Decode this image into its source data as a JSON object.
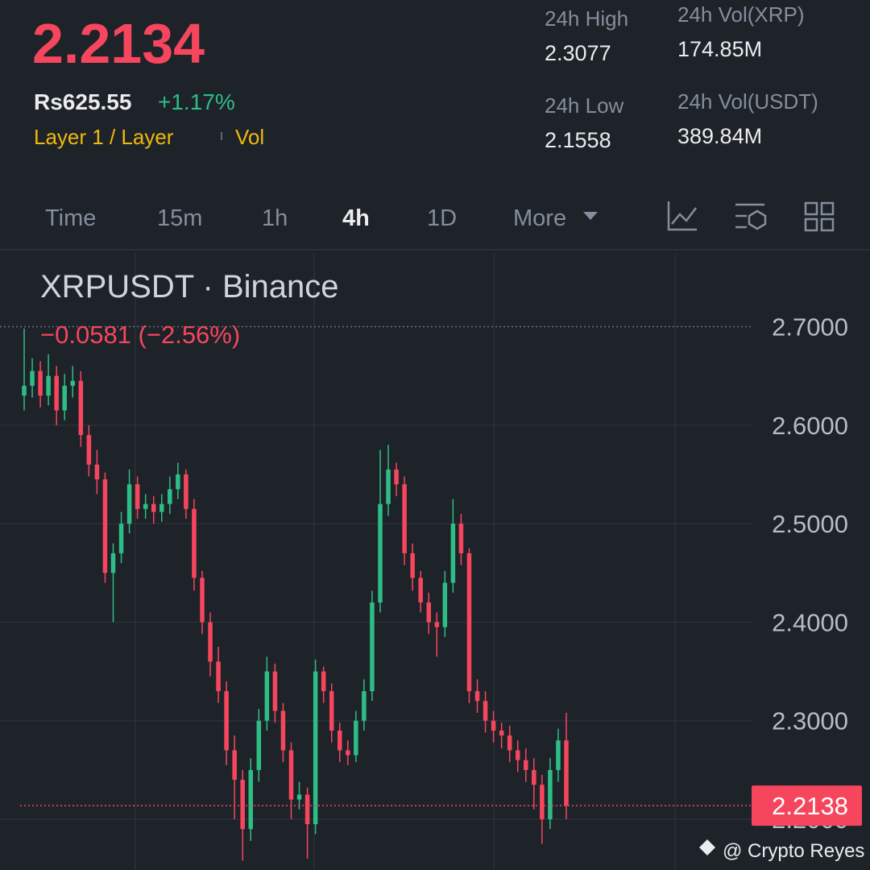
{
  "header": {
    "price": "2.2134",
    "fiat_price": "Rs625.55",
    "change": "+1.17%",
    "tag": "Layer 1 / Layer",
    "tag2": "Vol",
    "stats": [
      {
        "label": "24h High",
        "value": "2.3077"
      },
      {
        "label": "24h Vol(XRP)",
        "value": "174.85M"
      },
      {
        "label": "24h Low",
        "value": "2.1558"
      },
      {
        "label": "24h Vol(USDT)",
        "value": "389.84M"
      }
    ]
  },
  "tabs": [
    "Time",
    "15m",
    "1h",
    "4h",
    "1D",
    "More"
  ],
  "active_tab": "4h",
  "watermark": "@ Crypto Reyes",
  "chart_data": {
    "type": "candlestick",
    "title": "XRPUSDT · Binance",
    "subtitle": "−0.0581 (−2.56%)",
    "up_color": "#2ebd85",
    "down_color": "#f6465d",
    "ylim": [
      2.1485,
      2.774
    ],
    "yticks": [
      {
        "value": 2.7,
        "label": "2.7000"
      },
      {
        "value": 2.6,
        "label": "2.6000"
      },
      {
        "value": 2.5,
        "label": "2.5000"
      },
      {
        "value": 2.4,
        "label": "2.4000"
      },
      {
        "value": 2.3,
        "label": "2.3000"
      },
      {
        "value": 2.2,
        "label": "2.2000"
      }
    ],
    "grid": true,
    "last_price": 2.2138,
    "open": [
      2.63,
      2.64,
      2.655,
      2.63,
      2.65,
      2.615,
      2.64,
      2.645,
      2.59,
      2.56,
      2.545,
      2.45,
      2.47,
      2.5,
      2.54,
      2.515,
      2.52,
      2.512,
      2.52,
      2.535,
      2.55,
      2.515,
      2.445,
      2.4,
      2.36,
      2.33,
      2.27,
      2.24,
      2.19,
      2.25,
      2.3,
      2.35,
      2.31,
      2.27,
      2.22,
      2.225,
      2.195,
      2.35,
      2.33,
      2.29,
      2.27,
      2.265,
      2.3,
      2.33,
      2.42,
      2.52,
      2.555,
      2.54,
      2.47,
      2.445,
      2.42,
      2.4,
      2.395,
      2.44,
      2.5,
      2.47,
      2.33,
      2.32,
      2.3,
      2.29,
      2.285,
      2.27,
      2.26,
      2.25,
      2.235,
      2.2,
      2.25,
      2.28
    ],
    "high": [
      2.698,
      2.668,
      2.665,
      2.672,
      2.66,
      2.652,
      2.66,
      2.655,
      2.6,
      2.575,
      2.552,
      2.48,
      2.512,
      2.555,
      2.548,
      2.53,
      2.528,
      2.53,
      2.548,
      2.562,
      2.555,
      2.525,
      2.452,
      2.41,
      2.375,
      2.34,
      2.285,
      2.25,
      2.262,
      2.312,
      2.365,
      2.358,
      2.318,
      2.278,
      2.238,
      2.232,
      2.362,
      2.355,
      2.338,
      2.298,
      2.28,
      2.31,
      2.342,
      2.432,
      2.575,
      2.58,
      2.562,
      2.548,
      2.48,
      2.452,
      2.43,
      2.41,
      2.452,
      2.525,
      2.51,
      2.475,
      2.342,
      2.33,
      2.31,
      2.298,
      2.295,
      2.28,
      2.272,
      2.262,
      2.245,
      2.262,
      2.292,
      2.308
    ],
    "low": [
      2.615,
      2.628,
      2.618,
      2.62,
      2.6,
      2.605,
      2.628,
      2.578,
      2.548,
      2.53,
      2.44,
      2.4,
      2.46,
      2.49,
      2.505,
      2.505,
      2.5,
      2.502,
      2.51,
      2.525,
      2.505,
      2.432,
      2.388,
      2.345,
      2.318,
      2.255,
      2.2,
      2.158,
      2.178,
      2.238,
      2.29,
      2.298,
      2.258,
      2.2,
      2.21,
      2.16,
      2.185,
      2.318,
      2.278,
      2.258,
      2.255,
      2.258,
      2.29,
      2.32,
      2.41,
      2.508,
      2.528,
      2.458,
      2.432,
      2.41,
      2.388,
      2.365,
      2.385,
      2.43,
      2.458,
      2.318,
      2.308,
      2.288,
      2.278,
      2.272,
      2.258,
      2.248,
      2.238,
      2.21,
      2.175,
      2.19,
      2.238,
      2.2
    ],
    "close": [
      2.64,
      2.655,
      2.63,
      2.65,
      2.615,
      2.64,
      2.645,
      2.59,
      2.56,
      2.545,
      2.45,
      2.47,
      2.5,
      2.54,
      2.515,
      2.52,
      2.512,
      2.52,
      2.535,
      2.55,
      2.515,
      2.445,
      2.4,
      2.36,
      2.33,
      2.27,
      2.24,
      2.19,
      2.25,
      2.3,
      2.35,
      2.31,
      2.27,
      2.22,
      2.225,
      2.195,
      2.35,
      2.33,
      2.29,
      2.27,
      2.265,
      2.3,
      2.33,
      2.42,
      2.52,
      2.555,
      2.54,
      2.47,
      2.445,
      2.42,
      2.4,
      2.395,
      2.44,
      2.5,
      2.47,
      2.33,
      2.32,
      2.3,
      2.29,
      2.285,
      2.27,
      2.26,
      2.25,
      2.235,
      2.2,
      2.25,
      2.28,
      2.2138
    ]
  }
}
